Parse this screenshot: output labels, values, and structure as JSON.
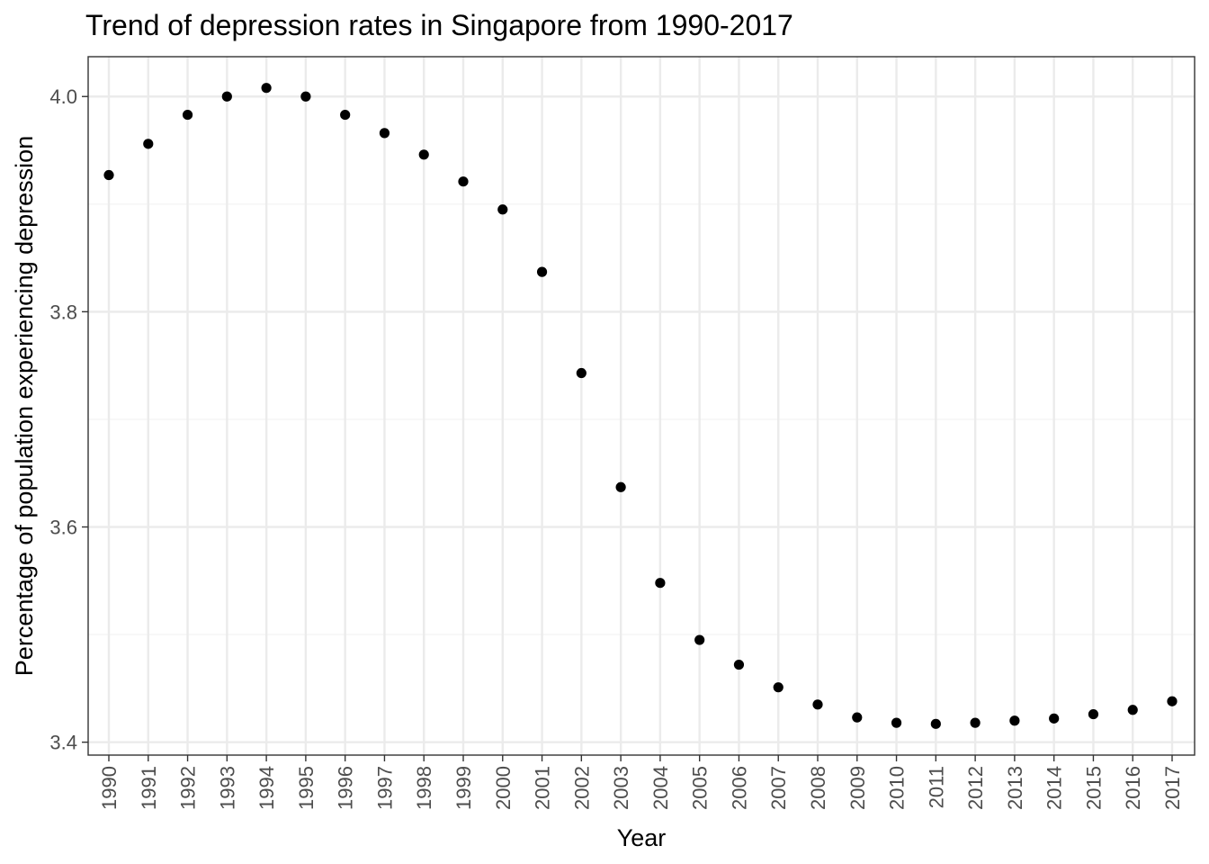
{
  "chart_data": {
    "type": "scatter",
    "title": "Trend of depression rates in Singapore from 1990-2017",
    "xlabel": "Year",
    "ylabel": "Percentage of population experiencing depression",
    "x": [
      "1990",
      "1991",
      "1992",
      "1993",
      "1994",
      "1995",
      "1996",
      "1997",
      "1998",
      "1999",
      "2000",
      "2001",
      "2002",
      "2003",
      "2004",
      "2005",
      "2006",
      "2007",
      "2008",
      "2009",
      "2010",
      "2011",
      "2012",
      "2013",
      "2014",
      "2015",
      "2016",
      "2017"
    ],
    "y": [
      3.927,
      3.956,
      3.983,
      4.0,
      4.008,
      4.0,
      3.983,
      3.966,
      3.946,
      3.921,
      3.895,
      3.837,
      3.743,
      3.637,
      3.548,
      3.495,
      3.472,
      3.451,
      3.435,
      3.423,
      3.418,
      3.417,
      3.418,
      3.42,
      3.422,
      3.426,
      3.43,
      3.438
    ],
    "ylim": [
      3.388,
      4.037
    ],
    "y_ticks": [
      "3.4",
      "3.6",
      "3.8",
      "4.0"
    ],
    "y_tick_values": [
      3.4,
      3.6,
      3.8,
      4.0
    ],
    "y_minor_ticks": [
      3.5,
      3.7,
      3.9
    ],
    "grid": true,
    "legend": "none",
    "point_color": "#000000",
    "grid_color": "#ebebeb",
    "border_color": "#333333"
  }
}
